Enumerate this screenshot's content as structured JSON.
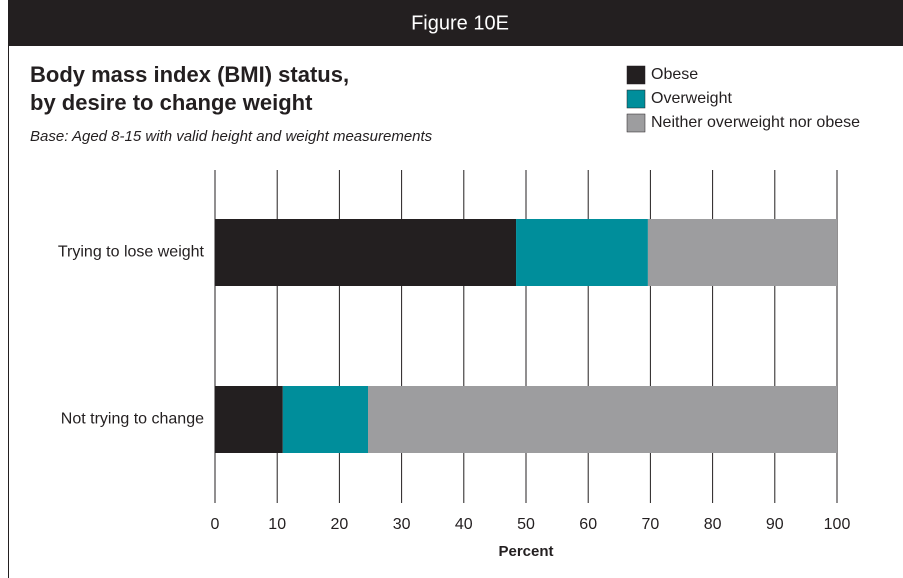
{
  "chart_data": {
    "type": "stacked_barh",
    "figure_label": "Figure 10E",
    "title": [
      "Body mass index (BMI) status,",
      "by desire to change weight"
    ],
    "subtitle": "Base: Aged 8-15 with valid height and weight measurements",
    "categories": [
      "Trying to lose weight",
      "Not trying to change"
    ],
    "series": [
      {
        "name": "Obese",
        "color": "#231f20",
        "values": [
          48.4,
          10.9
        ]
      },
      {
        "name": "Overweight",
        "color": "#008e9b",
        "values": [
          21.2,
          13.7
        ]
      },
      {
        "name": "Neither overweight nor obese",
        "color": "#9d9d9f",
        "values": [
          30.4,
          75.4
        ]
      }
    ],
    "xlabel": "Percent",
    "xlim": [
      0,
      100
    ],
    "xticks": [
      0,
      10,
      20,
      30,
      40,
      50,
      60,
      70,
      80,
      90,
      100
    ],
    "grid": true,
    "legend": "top-right"
  }
}
